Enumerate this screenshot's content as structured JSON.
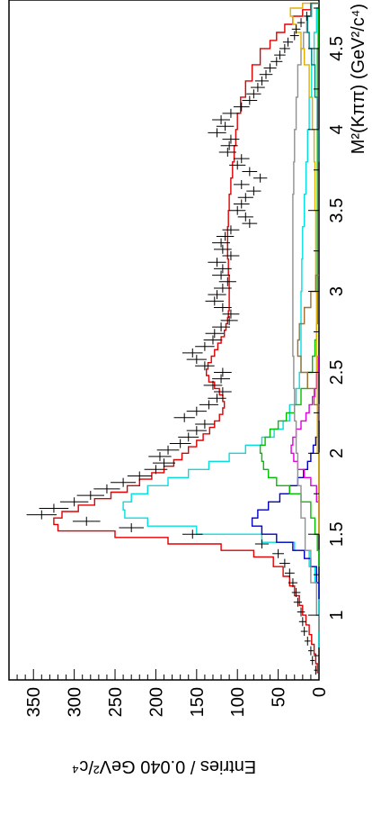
{
  "chart_data": {
    "type": "line",
    "orientation": "rotated-90-clockwise",
    "xlabel": "M²(Kππ) (GeV²/c⁴)",
    "ylabel": "Entries / 0.040 GeV²/c⁴",
    "xlim": [
      0.6,
      4.8
    ],
    "ylim": [
      0,
      380
    ],
    "xticks": [
      "1",
      "1.5",
      "2",
      "2.5",
      "3",
      "3.5",
      "4",
      "4.5"
    ],
    "yticks": [
      "0",
      "50",
      "100",
      "150",
      "200",
      "250",
      "300",
      "350"
    ],
    "grid": false,
    "legend": "none",
    "data_points": {
      "x": [
        0.66,
        0.72,
        0.78,
        0.84,
        0.9,
        0.96,
        1.02,
        1.08,
        1.14,
        1.2,
        1.26,
        1.32,
        1.38,
        1.44,
        1.5,
        1.54,
        1.58,
        1.62,
        1.66,
        1.7,
        1.74,
        1.78,
        1.82,
        1.86,
        1.9,
        1.94,
        1.98,
        2.02,
        2.06,
        2.1,
        2.14,
        2.18,
        2.22,
        2.26,
        2.3,
        2.34,
        2.38,
        2.42,
        2.46,
        2.5,
        2.54,
        2.58,
        2.62,
        2.66,
        2.7,
        2.74,
        2.78,
        2.82,
        2.86,
        2.9,
        2.94,
        2.98,
        3.02,
        3.06,
        3.1,
        3.14,
        3.18,
        3.22,
        3.26,
        3.3,
        3.34,
        3.38,
        3.42,
        3.46,
        3.5,
        3.54,
        3.58,
        3.62,
        3.66,
        3.7,
        3.74,
        3.78,
        3.82,
        3.86,
        3.9,
        3.94,
        3.98,
        4.02,
        4.06,
        4.1,
        4.14,
        4.18,
        4.22,
        4.26,
        4.3,
        4.34,
        4.38,
        4.42,
        4.46,
        4.5,
        4.54,
        4.58,
        4.62,
        4.66,
        4.7
      ],
      "y": [
        4,
        8,
        10,
        14,
        18,
        20,
        22,
        26,
        28,
        32,
        36,
        42,
        50,
        70,
        155,
        230,
        285,
        340,
        325,
        300,
        280,
        260,
        240,
        220,
        200,
        190,
        195,
        185,
        170,
        160,
        150,
        140,
        165,
        150,
        135,
        125,
        118,
        130,
        120,
        118,
        140,
        150,
        155,
        140,
        130,
        128,
        120,
        110,
        108,
        118,
        128,
        125,
        118,
        112,
        120,
        118,
        125,
        108,
        118,
        120,
        115,
        108,
        85,
        90,
        100,
        95,
        90,
        80,
        95,
        72,
        85,
        100,
        95,
        112,
        110,
        108,
        125,
        115,
        120,
        108,
        95,
        85,
        80,
        75,
        70,
        65,
        60,
        52,
        48,
        42,
        38,
        30,
        28,
        22,
        15
      ]
    },
    "series": [
      {
        "color": "#e00000",
        "x": [
          0.64,
          0.7,
          0.76,
          0.82,
          0.88,
          0.94,
          1.0,
          1.06,
          1.12,
          1.18,
          1.24,
          1.3,
          1.36,
          1.4,
          1.44,
          1.48,
          1.52,
          1.56,
          1.6,
          1.64,
          1.68,
          1.72,
          1.76,
          1.8,
          1.84,
          1.88,
          1.92,
          1.96,
          2.0,
          2.04,
          2.08,
          2.12,
          2.16,
          2.2,
          2.24,
          2.28,
          2.32,
          2.36,
          2.4,
          2.44,
          2.48,
          2.52,
          2.56,
          2.6,
          2.64,
          2.68,
          2.72,
          2.76,
          2.8,
          2.84,
          2.88,
          2.92,
          2.96,
          3.0,
          3.1,
          3.2,
          3.3,
          3.4,
          3.5,
          3.6,
          3.7,
          3.8,
          3.9,
          4.0,
          4.1,
          4.2,
          4.3,
          4.4,
          4.5,
          4.55,
          4.6,
          4.65,
          4.7,
          4.74,
          4.78
        ],
        "y": [
          2,
          4,
          6,
          9,
          12,
          16,
          20,
          24,
          30,
          36,
          44,
          56,
          80,
          120,
          185,
          250,
          320,
          325,
          315,
          295,
          275,
          255,
          235,
          220,
          205,
          190,
          178,
          168,
          160,
          150,
          142,
          134,
          128,
          122,
          118,
          116,
          118,
          122,
          128,
          135,
          138,
          136,
          132,
          128,
          124,
          120,
          116,
          114,
          112,
          111,
          110,
          110,
          110,
          110,
          111,
          112,
          112,
          111,
          110,
          108,
          106,
          104,
          102,
          100,
          96,
          90,
          82,
          72,
          60,
          52,
          42,
          32,
          20,
          10,
          2
        ]
      },
      {
        "color": "#00e0e0",
        "x": [
          0.8,
          1.0,
          1.2,
          1.3,
          1.4,
          1.45,
          1.5,
          1.55,
          1.6,
          1.65,
          1.7,
          1.75,
          1.8,
          1.85,
          1.9,
          1.95,
          2.0,
          2.05,
          2.1,
          2.15,
          2.2,
          2.3,
          2.4,
          2.5,
          2.6,
          2.7,
          2.8,
          3.0,
          3.2,
          3.4,
          3.6,
          3.8,
          4.0,
          4.2,
          4.4,
          4.6,
          4.75
        ],
        "y": [
          0,
          0,
          5,
          12,
          30,
          70,
          150,
          210,
          238,
          240,
          230,
          210,
          185,
          160,
          135,
          110,
          90,
          70,
          55,
          44,
          36,
          28,
          24,
          22,
          22,
          22,
          22,
          21,
          20,
          18,
          16,
          14,
          12,
          9,
          6,
          3,
          0
        ]
      },
      {
        "color": "#0000c8",
        "x": [
          1.1,
          1.2,
          1.3,
          1.35,
          1.4,
          1.45,
          1.5,
          1.55,
          1.6,
          1.65,
          1.7,
          1.75,
          1.8,
          1.85,
          1.9,
          1.95,
          2.0,
          2.05,
          2.1,
          2.2,
          2.3
        ],
        "y": [
          0,
          3,
          10,
          18,
          32,
          52,
          70,
          82,
          75,
          62,
          48,
          36,
          26,
          19,
          14,
          10,
          7,
          4,
          2,
          1,
          0
        ]
      },
      {
        "color": "#00c000",
        "x": [
          1.3,
          1.4,
          1.5,
          1.6,
          1.7,
          1.75,
          1.8,
          1.85,
          1.9,
          1.95,
          2.0,
          2.05,
          2.1,
          2.15,
          2.2,
          2.25,
          2.3,
          2.4,
          2.5,
          2.6,
          2.7,
          2.8,
          3.0,
          3.5,
          4.0,
          4.5,
          4.75
        ],
        "y": [
          0,
          2,
          5,
          10,
          22,
          36,
          52,
          62,
          68,
          70,
          72,
          66,
          60,
          50,
          40,
          30,
          22,
          14,
          8,
          5,
          3,
          2,
          2,
          2,
          2,
          1,
          0
        ]
      },
      {
        "color": "#e000e0",
        "x": [
          1.6,
          1.7,
          1.8,
          1.85,
          1.9,
          1.95,
          2.0,
          2.05,
          2.1,
          2.15,
          2.2,
          2.25,
          2.3,
          2.35,
          2.4,
          2.5,
          2.6
        ],
        "y": [
          0,
          3,
          10,
          18,
          26,
          31,
          34,
          32,
          28,
          22,
          16,
          12,
          8,
          5,
          3,
          1,
          0
        ]
      },
      {
        "color": "#909090",
        "x": [
          0.9,
          1.0,
          1.2,
          1.4,
          1.6,
          1.8,
          2.0,
          2.2,
          2.4,
          2.6,
          2.8,
          3.0,
          3.2,
          3.4,
          3.6,
          3.8,
          4.0,
          4.2,
          4.4,
          4.5,
          4.6,
          4.7,
          4.78
        ],
        "y": [
          0,
          3,
          10,
          17,
          22,
          26,
          28,
          30,
          31,
          32,
          32,
          32,
          32,
          32,
          31,
          30,
          28,
          26,
          22,
          19,
          15,
          9,
          0
        ]
      },
      {
        "color": "#e0b000",
        "x": [
          1.5,
          2.0,
          2.5,
          3.0,
          3.5,
          3.8,
          4.0,
          4.2,
          4.4,
          4.5,
          4.6,
          4.65,
          4.7,
          4.75,
          4.78
        ],
        "y": [
          0,
          2,
          3,
          4,
          5,
          6,
          8,
          12,
          18,
          22,
          28,
          32,
          35,
          20,
          0
        ]
      },
      {
        "color": "#a07030",
        "x": [
          2.2,
          2.3,
          2.4,
          2.5,
          2.6,
          2.7,
          2.8,
          2.9,
          3.0,
          3.1
        ],
        "y": [
          0,
          6,
          14,
          22,
          26,
          24,
          18,
          10,
          4,
          0
        ]
      },
      {
        "color": "#008080",
        "x": [
          3.8,
          4.0,
          4.2,
          4.4,
          4.5,
          4.6,
          4.7,
          4.78
        ],
        "y": [
          0,
          2,
          5,
          9,
          12,
          14,
          10,
          0
        ]
      }
    ]
  }
}
